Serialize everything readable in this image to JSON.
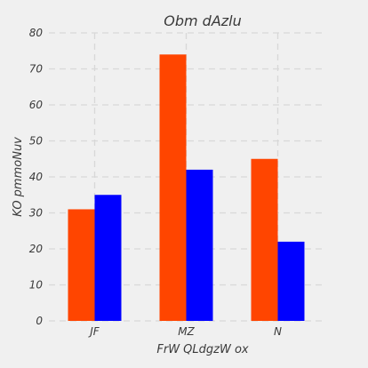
{
  "chart_data": {
    "type": "bar",
    "title": "Obm dAzlu",
    "xlabel": "FrW QLdgzW ox",
    "ylabel": "KO pmmoNuv",
    "categories": [
      "JF",
      "MZ",
      "N"
    ],
    "series": [
      {
        "values": [
          31,
          74,
          45
        ],
        "color": "#ff4500"
      },
      {
        "values": [
          35,
          42,
          22
        ],
        "color": "#0000ff"
      }
    ],
    "ylim": [
      0,
      80
    ],
    "yticks": [
      0,
      10,
      20,
      30,
      40,
      50,
      60,
      70,
      80
    ],
    "grid": true,
    "legend": "none",
    "background": "#f0f0f0"
  }
}
